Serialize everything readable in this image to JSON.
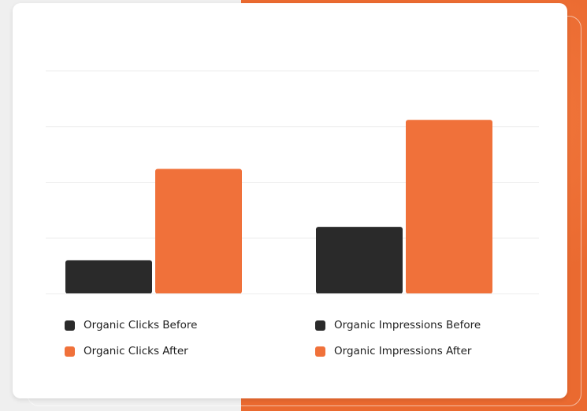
{
  "colors": {
    "before": "#2a2a2a",
    "after": "#f0713a",
    "grid": "#ececec",
    "page_accent": "#ea6a30"
  },
  "chart_data": {
    "type": "bar",
    "title": "",
    "xlabel": "",
    "ylabel": "",
    "categories": [
      "Organic Clicks",
      "Organic Impressions"
    ],
    "grid": true,
    "axis_labels_shown": false,
    "ylim": [
      0,
      100
    ],
    "gridlines": [
      25,
      50,
      75
    ],
    "bars": [
      {
        "name": "Organic Clicks Before",
        "value": 15,
        "color": "#2a2a2a"
      },
      {
        "name": "Organic Clicks After",
        "value": 56,
        "color": "#f0713a"
      },
      {
        "name": "Organic Impressions Before",
        "value": 30,
        "color": "#2a2a2a"
      },
      {
        "name": "Organic Impressions After",
        "value": 78,
        "color": "#f0713a"
      }
    ],
    "legend_position": "bottom"
  },
  "legend": {
    "items": [
      {
        "label": "Organic Clicks Before",
        "color": "#2a2a2a"
      },
      {
        "label": "Organic Impressions Before",
        "color": "#2a2a2a"
      },
      {
        "label": "Organic Clicks After",
        "color": "#f0713a"
      },
      {
        "label": "Organic Impressions After",
        "color": "#f0713a"
      }
    ]
  }
}
